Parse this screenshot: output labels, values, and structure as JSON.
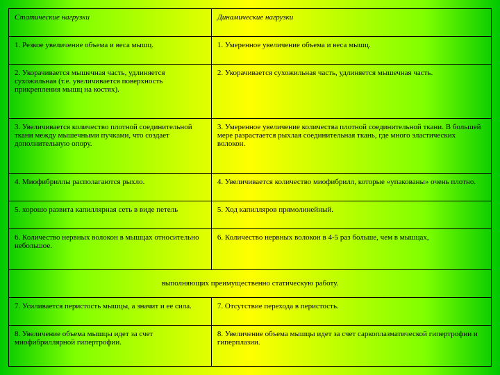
{
  "header": {
    "left": "Статические нагрузки",
    "right": "Динамические нагрузки"
  },
  "rows": [
    {
      "l": "1. Резкое увеличение объема и веса мышц.",
      "r": "1. Умеренное увеличение объема и веса мышц."
    },
    {
      "l": "2. Укорачивается мышечная часть, удлиняется сухожильная (т.е. увеличивается поверхность прикрепления мышц на костях).",
      "r": "2. Укорачивается сухожильная часть, удлиняется мышечная часть."
    },
    {
      "l": "3. Увеличивается количество плотной соединительной ткани между мышечными пучками, что создает дополнительную опору.",
      "r": "3. Умеренное увеличение количества плотной соединительной ткани. В большей мере разрастается рыхлая соединительная ткань, где много эластических волокон."
    },
    {
      "l": "4. Миофибриллы располагаются рыхло.",
      "r": "4. Увеличивается количество миофибрилл, которые «упакованы» очень плотно."
    },
    {
      "l": "5. хорошо развита капиллярная сеть в виде петель",
      "r": "5. Ход капилляров прямолинейный."
    },
    {
      "l": "6. Количество нервных волокон в мышцах относительно небольшое.",
      "r": "6. Количество нервных волокон в 4-5 раз больше, чем в мышцах,"
    }
  ],
  "merged": "выполняющих преимущественно статическую работу.",
  "rows2": [
    {
      "l": "7. Усиливается перистость мышцы, а значит и ее сила.",
      "r": "7. Отсутствие перехода в перистость."
    },
    {
      "l": "8. Увеличение объема мышцы идет за счет миофибриллярной гипертрофии.",
      "r": "8. Увеличение объема мышцы идет за счет саркоплазматической гипертрофии и гиперплазии."
    }
  ]
}
